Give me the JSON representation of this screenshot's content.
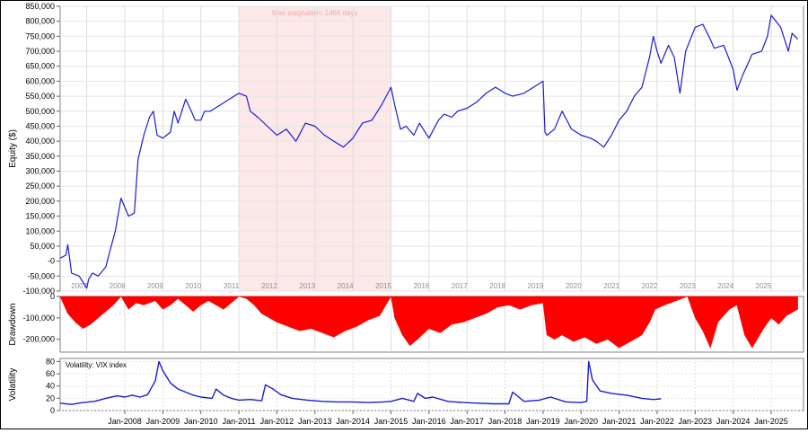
{
  "chart_data": [
    {
      "type": "line",
      "panel": "equity",
      "ylabel": "Equity ($)",
      "ylim": [
        -100000,
        850000
      ],
      "yticks": [
        -100000,
        -50000,
        0,
        50000,
        100000,
        150000,
        200000,
        250000,
        300000,
        350000,
        400000,
        450000,
        500000,
        550000,
        600000,
        650000,
        700000,
        750000,
        800000,
        850000
      ],
      "ytick_labels": [
        "-100,000",
        "-50,000",
        "-0",
        "50,000",
        "100,000",
        "150,000",
        "200,000",
        "250,000",
        "300,000",
        "350,000",
        "400,000",
        "450,000",
        "500,000",
        "550,000",
        "600,000",
        "650,000",
        "700,000",
        "750,000",
        "800,000",
        "850,000"
      ],
      "year_labels": [
        "2007",
        "2008",
        "2009",
        "2010",
        "2011",
        "2012",
        "2013",
        "2014",
        "2015",
        "2016",
        "2017",
        "2018",
        "2019",
        "2020",
        "2021",
        "2022",
        "2023",
        "2024",
        "2025"
      ],
      "stagnation": {
        "label": "Max stagnation: 1466 days",
        "start": 2011.0,
        "end": 2015.0,
        "color": "#fce8e8"
      },
      "line_color": "#1c1cd0",
      "series": [
        {
          "x": [
            2006.3,
            2006.45,
            2006.5,
            2006.6,
            2006.8,
            2006.9,
            2007.0,
            2007.05,
            2007.15,
            2007.3,
            2007.5,
            2007.6,
            2007.75,
            2007.9,
            2008.0,
            2008.1,
            2008.25,
            2008.35,
            2008.5,
            2008.65,
            2008.75,
            2008.85,
            2009.0,
            2009.1,
            2009.2,
            2009.3,
            2009.4,
            2009.6,
            2009.75,
            2009.85,
            2010.0,
            2010.1,
            2010.25,
            2010.5,
            2010.75,
            2011.0,
            2011.2,
            2011.3,
            2011.5,
            2011.75,
            2012.0,
            2012.25,
            2012.5,
            2012.75,
            2013.0,
            2013.25,
            2013.5,
            2013.75,
            2014.0,
            2014.25,
            2014.5,
            2014.75,
            2015.0,
            2015.1,
            2015.25,
            2015.4,
            2015.6,
            2015.75,
            2016.0,
            2016.25,
            2016.4,
            2016.6,
            2016.75,
            2017.0,
            2017.25,
            2017.5,
            2017.75,
            2018.0,
            2018.2,
            2018.5,
            2018.75,
            2019.0,
            2019.05,
            2019.1,
            2019.3,
            2019.5,
            2019.75,
            2020.0,
            2020.25,
            2020.4,
            2020.6,
            2020.8,
            2021.0,
            2021.2,
            2021.4,
            2021.6,
            2021.8,
            2021.9,
            2022.0,
            2022.1,
            2022.3,
            2022.45,
            2022.6,
            2022.75,
            2023.0,
            2023.2,
            2023.4,
            2023.5,
            2023.75,
            2024.0,
            2024.1,
            2024.25,
            2024.5,
            2024.75,
            2024.9,
            2025.0,
            2025.25,
            2025.45,
            2025.55,
            2025.7
          ],
          "y": [
            10000,
            20000,
            55000,
            -40000,
            -50000,
            -70000,
            -90000,
            -60000,
            -40000,
            -50000,
            -20000,
            30000,
            100000,
            210000,
            180000,
            150000,
            160000,
            340000,
            420000,
            480000,
            500000,
            420000,
            410000,
            420000,
            430000,
            500000,
            460000,
            540000,
            500000,
            470000,
            470000,
            500000,
            500000,
            520000,
            540000,
            560000,
            550000,
            500000,
            480000,
            450000,
            420000,
            440000,
            400000,
            460000,
            450000,
            420000,
            400000,
            380000,
            410000,
            460000,
            470000,
            520000,
            580000,
            520000,
            440000,
            450000,
            420000,
            460000,
            410000,
            470000,
            490000,
            480000,
            500000,
            510000,
            530000,
            560000,
            580000,
            560000,
            550000,
            560000,
            580000,
            600000,
            430000,
            420000,
            440000,
            500000,
            440000,
            420000,
            410000,
            400000,
            380000,
            420000,
            470000,
            500000,
            550000,
            580000,
            680000,
            750000,
            700000,
            660000,
            720000,
            680000,
            560000,
            700000,
            780000,
            790000,
            740000,
            710000,
            720000,
            640000,
            570000,
            620000,
            690000,
            700000,
            750000,
            820000,
            780000,
            700000,
            760000,
            740000
          ]
        }
      ]
    },
    {
      "type": "area",
      "panel": "drawdown",
      "ylabel": "Drawdown",
      "ylim": [
        -260000,
        0
      ],
      "yticks": [
        0,
        -100000,
        -200000
      ],
      "ytick_labels": [
        "0",
        "-100,000",
        "-200,000"
      ],
      "fill_color": "#ff0000",
      "series": [
        {
          "x": [
            2006.3,
            2006.5,
            2006.7,
            2006.9,
            2007.1,
            2007.3,
            2007.5,
            2007.7,
            2007.9,
            2008.1,
            2008.3,
            2008.5,
            2008.8,
            2009.0,
            2009.2,
            2009.4,
            2009.6,
            2009.8,
            2010.0,
            2010.2,
            2010.4,
            2010.6,
            2010.8,
            2011.0,
            2011.2,
            2011.4,
            2011.6,
            2011.8,
            2012.0,
            2012.3,
            2012.6,
            2012.9,
            2013.2,
            2013.5,
            2013.8,
            2014.1,
            2014.4,
            2014.7,
            2015.0,
            2015.1,
            2015.3,
            2015.5,
            2015.7,
            2016.0,
            2016.3,
            2016.6,
            2016.9,
            2017.2,
            2017.5,
            2017.8,
            2018.1,
            2018.4,
            2018.7,
            2019.0,
            2019.1,
            2019.3,
            2019.5,
            2019.8,
            2020.1,
            2020.4,
            2020.7,
            2021.0,
            2021.3,
            2021.6,
            2021.8,
            2021.95,
            2022.2,
            2022.5,
            2022.8,
            2023.0,
            2023.2,
            2023.4,
            2023.6,
            2023.9,
            2024.1,
            2024.3,
            2024.5,
            2024.8,
            2025.0,
            2025.2,
            2025.4,
            2025.7
          ],
          "y": [
            0,
            -80000,
            -120000,
            -150000,
            -130000,
            -100000,
            -70000,
            -40000,
            0,
            -60000,
            -30000,
            -40000,
            -20000,
            -60000,
            -40000,
            -10000,
            -40000,
            -70000,
            -40000,
            -20000,
            -40000,
            -60000,
            -30000,
            0,
            -10000,
            -40000,
            -80000,
            -100000,
            -120000,
            -140000,
            -160000,
            -150000,
            -170000,
            -190000,
            -160000,
            -140000,
            -110000,
            -90000,
            0,
            -100000,
            -180000,
            -230000,
            -200000,
            -150000,
            -170000,
            -130000,
            -120000,
            -100000,
            -80000,
            -50000,
            -40000,
            -60000,
            -40000,
            -30000,
            -180000,
            -200000,
            -180000,
            -210000,
            -190000,
            -220000,
            -200000,
            -240000,
            -210000,
            -180000,
            -120000,
            -60000,
            -40000,
            -20000,
            0,
            -100000,
            -160000,
            -240000,
            -120000,
            -60000,
            -40000,
            -180000,
            -240000,
            -150000,
            -100000,
            -130000,
            -90000,
            -60000
          ]
        }
      ]
    },
    {
      "type": "line",
      "panel": "volatility",
      "ylabel": "Volatility",
      "legend": "Volatility: VIX index",
      "ylim": [
        0,
        85
      ],
      "yticks": [
        0,
        20,
        40,
        60,
        80
      ],
      "ytick_labels": [
        "0",
        "20",
        "40",
        "60",
        "80"
      ],
      "xtick_labels": [
        "Jan-2008",
        "Jan-2009",
        "Jan-2010",
        "Jan-2011",
        "Jan-2012",
        "Jan-2013",
        "Jan-2014",
        "Jan-2015",
        "Jan-2016",
        "Jan-2017",
        "Jan-2018",
        "Jan-2019",
        "Jan-2020",
        "Jan-2021",
        "Jan-2022",
        "Jan-2023",
        "Jan-2024",
        "Jan-2025"
      ],
      "line_color": "#1c1cd0",
      "series": [
        {
          "x": [
            2006.3,
            2006.6,
            2006.9,
            2007.2,
            2007.5,
            2007.8,
            2008.0,
            2008.2,
            2008.4,
            2008.6,
            2008.8,
            2008.9,
            2009.0,
            2009.2,
            2009.4,
            2009.6,
            2009.8,
            2010.0,
            2010.3,
            2010.4,
            2010.6,
            2010.8,
            2011.0,
            2011.3,
            2011.6,
            2011.7,
            2011.9,
            2012.1,
            2012.4,
            2012.8,
            2013.2,
            2013.6,
            2014.0,
            2014.4,
            2014.8,
            2015.0,
            2015.3,
            2015.6,
            2015.7,
            2015.9,
            2016.1,
            2016.5,
            2016.9,
            2017.3,
            2017.7,
            2018.1,
            2018.2,
            2018.5,
            2018.9,
            2019.2,
            2019.6,
            2020.0,
            2020.15,
            2020.2,
            2020.3,
            2020.5,
            2020.8,
            2021.2,
            2021.6,
            2021.9,
            2022.1
          ],
          "y": [
            12,
            10,
            13,
            15,
            20,
            24,
            22,
            25,
            22,
            26,
            48,
            80,
            65,
            45,
            35,
            30,
            25,
            22,
            20,
            35,
            25,
            20,
            17,
            18,
            16,
            42,
            35,
            26,
            20,
            17,
            15,
            14,
            14,
            13,
            14,
            15,
            20,
            15,
            28,
            20,
            22,
            15,
            13,
            12,
            11,
            11,
            30,
            15,
            17,
            22,
            14,
            13,
            15,
            80,
            50,
            32,
            28,
            25,
            20,
            18,
            19
          ]
        }
      ]
    }
  ]
}
